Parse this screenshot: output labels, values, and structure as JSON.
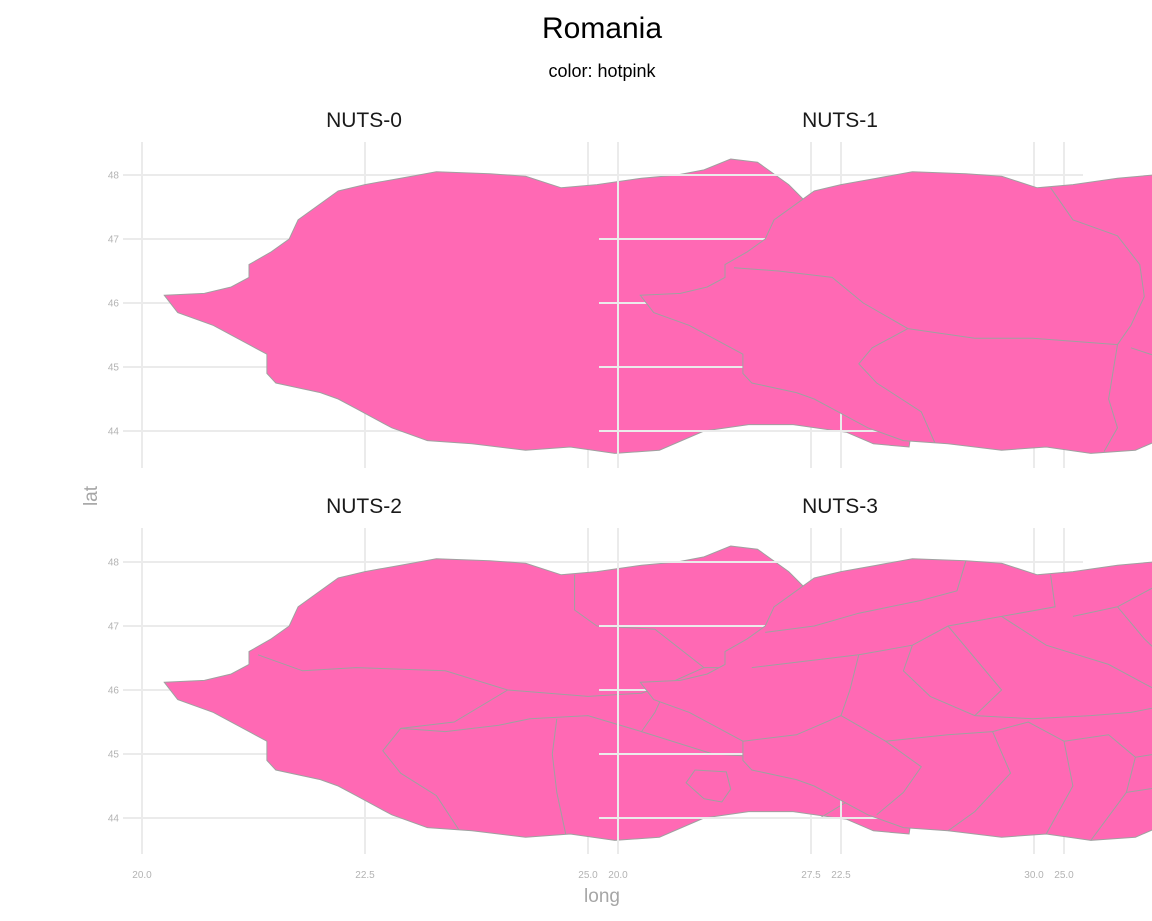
{
  "chart_data": {
    "type": "map",
    "title": "Romania",
    "subtitle": "color: hotpink",
    "fill_color": "#ff69b4",
    "border_color": "#a0a0a0",
    "xlabel": "long",
    "ylabel": "lat",
    "xlim": [
      20.0,
      30.2
    ],
    "ylim": [
      43.5,
      48.5
    ],
    "x_ticks": [
      20.0,
      22.5,
      25.0,
      27.5,
      30.0
    ],
    "x_tick_labels": [
      "20.0",
      "22.5",
      "25.0",
      "27.5",
      "30.0"
    ],
    "y_ticks": [
      44,
      45,
      46,
      47,
      48
    ],
    "y_tick_labels": [
      "44",
      "45",
      "46",
      "47",
      "48"
    ],
    "grid": true,
    "panels": [
      {
        "name": "NUTS-0",
        "level": 0,
        "region_count": 1
      },
      {
        "name": "NUTS-1",
        "level": 1,
        "region_count": 4
      },
      {
        "name": "NUTS-2",
        "level": 2,
        "region_count": 8
      },
      {
        "name": "NUTS-3",
        "level": 3,
        "region_count": 42
      }
    ],
    "outline": [
      [
        20.25,
        46.12
      ],
      [
        20.7,
        46.15
      ],
      [
        21.0,
        46.25
      ],
      [
        21.2,
        46.4
      ],
      [
        21.2,
        46.6
      ],
      [
        21.45,
        46.8
      ],
      [
        21.65,
        47.0
      ],
      [
        21.75,
        47.3
      ],
      [
        22.0,
        47.55
      ],
      [
        22.2,
        47.75
      ],
      [
        22.5,
        47.85
      ],
      [
        22.9,
        47.95
      ],
      [
        23.3,
        48.05
      ],
      [
        23.9,
        48.02
      ],
      [
        24.3,
        47.98
      ],
      [
        24.7,
        47.8
      ],
      [
        25.1,
        47.85
      ],
      [
        25.6,
        47.95
      ],
      [
        26.0,
        48.0
      ],
      [
        26.3,
        48.08
      ],
      [
        26.6,
        48.25
      ],
      [
        26.9,
        48.2
      ],
      [
        27.25,
        47.85
      ],
      [
        27.5,
        47.5
      ],
      [
        27.8,
        47.2
      ],
      [
        28.1,
        46.95
      ],
      [
        28.2,
        46.6
      ],
      [
        28.15,
        46.2
      ],
      [
        28.2,
        45.7
      ],
      [
        28.3,
        45.4
      ],
      [
        28.7,
        45.3
      ],
      [
        29.1,
        45.4
      ],
      [
        29.5,
        45.42
      ],
      [
        29.7,
        45.2
      ],
      [
        29.65,
        45.0
      ],
      [
        29.1,
        44.8
      ],
      [
        28.9,
        44.5
      ],
      [
        28.65,
        44.25
      ],
      [
        28.6,
        43.75
      ],
      [
        28.2,
        43.8
      ],
      [
        27.9,
        43.98
      ],
      [
        27.3,
        44.1
      ],
      [
        26.8,
        44.1
      ],
      [
        26.3,
        44.0
      ],
      [
        25.8,
        43.7
      ],
      [
        25.3,
        43.65
      ],
      [
        24.8,
        43.75
      ],
      [
        24.3,
        43.7
      ],
      [
        23.7,
        43.8
      ],
      [
        23.2,
        43.85
      ],
      [
        22.8,
        44.05
      ],
      [
        22.6,
        44.2
      ],
      [
        22.4,
        44.35
      ],
      [
        22.2,
        44.5
      ],
      [
        22.0,
        44.6
      ],
      [
        21.5,
        44.75
      ],
      [
        21.4,
        44.9
      ],
      [
        21.4,
        45.2
      ],
      [
        21.2,
        45.35
      ],
      [
        20.8,
        45.65
      ],
      [
        20.4,
        45.85
      ]
    ],
    "borders": [
      [
        [
          [
            24.85,
            47.8
          ],
          [
            25.1,
            47.3
          ],
          [
            25.6,
            47.05
          ],
          [
            25.85,
            46.6
          ],
          [
            25.9,
            46.1
          ],
          [
            25.75,
            45.65
          ],
          [
            25.6,
            45.35
          ],
          [
            25.5,
            44.5
          ],
          [
            25.6,
            44.05
          ],
          [
            25.45,
            43.68
          ]
        ],
        [
          [
            21.3,
            46.55
          ],
          [
            21.8,
            46.5
          ],
          [
            22.4,
            46.4
          ],
          [
            22.75,
            46.0
          ],
          [
            23.25,
            45.6
          ],
          [
            24.0,
            45.45
          ],
          [
            24.65,
            45.45
          ],
          [
            25.6,
            45.35
          ]
        ],
        [
          [
            23.55,
            43.82
          ],
          [
            23.4,
            44.3
          ],
          [
            22.9,
            44.75
          ],
          [
            22.7,
            45.05
          ],
          [
            22.85,
            45.3
          ],
          [
            23.25,
            45.6
          ]
        ],
        [
          [
            25.75,
            45.3
          ],
          [
            26.4,
            45.0
          ],
          [
            27.0,
            44.9
          ],
          [
            27.8,
            44.85
          ],
          [
            28.3,
            44.9
          ],
          [
            28.4,
            44.5
          ],
          [
            27.9,
            44.25
          ],
          [
            27.6,
            44.0
          ]
        ]
      ],
      [
        [
          [
            24.85,
            47.8
          ],
          [
            24.85,
            47.25
          ],
          [
            25.1,
            47.0
          ],
          [
            25.75,
            46.95
          ],
          [
            26.3,
            46.35
          ],
          [
            27.1,
            46.35
          ],
          [
            28.15,
            46.35
          ]
        ],
        [
          [
            21.3,
            46.55
          ],
          [
            21.8,
            46.3
          ],
          [
            22.4,
            46.35
          ],
          [
            23.4,
            46.3
          ],
          [
            24.1,
            46.0
          ],
          [
            25.0,
            45.9
          ],
          [
            25.6,
            45.95
          ],
          [
            25.9,
            46.1
          ],
          [
            26.3,
            46.35
          ]
        ],
        [
          [
            24.1,
            46.0
          ],
          [
            23.5,
            45.5
          ],
          [
            22.9,
            45.4
          ],
          [
            22.7,
            45.05
          ],
          [
            22.9,
            44.7
          ],
          [
            23.3,
            44.35
          ],
          [
            23.55,
            43.82
          ]
        ],
        [
          [
            22.9,
            45.4
          ],
          [
            23.4,
            45.35
          ],
          [
            24.0,
            45.45
          ],
          [
            24.35,
            45.55
          ],
          [
            25.0,
            45.6
          ],
          [
            25.6,
            45.35
          ],
          [
            25.75,
            45.65
          ],
          [
            25.9,
            46.1
          ]
        ],
        [
          [
            24.65,
            45.55
          ],
          [
            24.6,
            45.0
          ],
          [
            24.65,
            44.4
          ],
          [
            24.75,
            43.75
          ]
        ],
        [
          [
            25.6,
            45.35
          ],
          [
            26.4,
            45.0
          ],
          [
            27.0,
            44.95
          ],
          [
            27.7,
            44.85
          ],
          [
            28.3,
            44.9
          ],
          [
            28.4,
            44.5
          ],
          [
            27.9,
            44.25
          ],
          [
            27.6,
            44.0
          ]
        ],
        [
          [
            26.3,
            44.3
          ],
          [
            26.1,
            44.55
          ],
          [
            26.2,
            44.75
          ],
          [
            26.55,
            44.72
          ],
          [
            26.6,
            44.45
          ],
          [
            26.5,
            44.25
          ],
          [
            26.3,
            44.3
          ]
        ]
      ],
      [
        [
          [
            23.9,
            48.02
          ],
          [
            23.8,
            47.55
          ],
          [
            23.4,
            47.4
          ],
          [
            22.7,
            47.2
          ],
          [
            22.2,
            47.0
          ],
          [
            21.65,
            46.9
          ]
        ],
        [
          [
            24.85,
            47.8
          ],
          [
            24.9,
            47.3
          ],
          [
            24.3,
            47.15
          ],
          [
            23.7,
            47.0
          ],
          [
            23.3,
            46.7
          ],
          [
            22.7,
            46.55
          ],
          [
            21.5,
            46.35
          ]
        ],
        [
          [
            26.3,
            48.08
          ],
          [
            26.0,
            47.6
          ],
          [
            25.6,
            47.3
          ],
          [
            25.1,
            47.15
          ]
        ],
        [
          [
            27.25,
            47.85
          ],
          [
            27.0,
            47.3
          ],
          [
            26.8,
            46.9
          ],
          [
            27.3,
            46.5
          ],
          [
            28.15,
            46.3
          ]
        ],
        [
          [
            23.3,
            46.7
          ],
          [
            23.2,
            46.3
          ],
          [
            23.5,
            45.9
          ],
          [
            24.0,
            45.6
          ],
          [
            24.65,
            45.55
          ],
          [
            25.3,
            45.6
          ],
          [
            25.75,
            45.65
          ],
          [
            26.3,
            45.8
          ],
          [
            26.9,
            45.9
          ],
          [
            27.2,
            45.7
          ],
          [
            28.2,
            45.5
          ]
        ],
        [
          [
            22.7,
            46.55
          ],
          [
            22.6,
            46.0
          ],
          [
            22.5,
            45.6
          ],
          [
            22.0,
            45.3
          ],
          [
            21.4,
            45.2
          ]
        ],
        [
          [
            22.5,
            45.6
          ],
          [
            23.0,
            45.2
          ],
          [
            23.4,
            44.8
          ],
          [
            23.2,
            44.4
          ],
          [
            22.9,
            44.05
          ]
        ],
        [
          [
            23.0,
            45.2
          ],
          [
            23.7,
            45.3
          ],
          [
            24.2,
            45.35
          ],
          [
            24.4,
            44.7
          ],
          [
            24.0,
            44.1
          ],
          [
            23.7,
            43.8
          ]
        ],
        [
          [
            24.2,
            45.35
          ],
          [
            24.6,
            45.5
          ],
          [
            25.0,
            45.2
          ],
          [
            25.1,
            44.5
          ],
          [
            24.8,
            43.75
          ]
        ],
        [
          [
            25.0,
            45.2
          ],
          [
            25.5,
            45.3
          ],
          [
            25.8,
            44.95
          ],
          [
            25.7,
            44.4
          ],
          [
            25.3,
            43.65
          ]
        ],
        [
          [
            25.8,
            44.95
          ],
          [
            26.5,
            45.1
          ],
          [
            27.1,
            44.95
          ],
          [
            27.7,
            44.9
          ],
          [
            28.3,
            45.0
          ]
        ],
        [
          [
            25.7,
            44.4
          ],
          [
            26.4,
            44.55
          ],
          [
            27.0,
            44.45
          ],
          [
            27.6,
            44.4
          ],
          [
            28.3,
            44.4
          ]
        ],
        [
          [
            26.5,
            45.1
          ],
          [
            26.9,
            45.6
          ],
          [
            27.2,
            45.7
          ]
        ],
        [
          [
            24.3,
            47.15
          ],
          [
            24.8,
            46.7
          ],
          [
            25.5,
            46.4
          ],
          [
            26.3,
            45.8
          ]
        ],
        [
          [
            25.6,
            47.3
          ],
          [
            25.9,
            46.8
          ],
          [
            26.2,
            46.4
          ],
          [
            26.9,
            45.9
          ]
        ],
        [
          [
            23.7,
            47.0
          ],
          [
            24.0,
            46.5
          ],
          [
            24.3,
            46.0
          ],
          [
            24.0,
            45.6
          ]
        ],
        [
          [
            26.1,
            44.6
          ],
          [
            26.0,
            44.35
          ],
          [
            26.25,
            44.25
          ],
          [
            26.4,
            44.35
          ],
          [
            26.3,
            44.6
          ],
          [
            26.1,
            44.6
          ]
        ]
      ]
    ]
  }
}
